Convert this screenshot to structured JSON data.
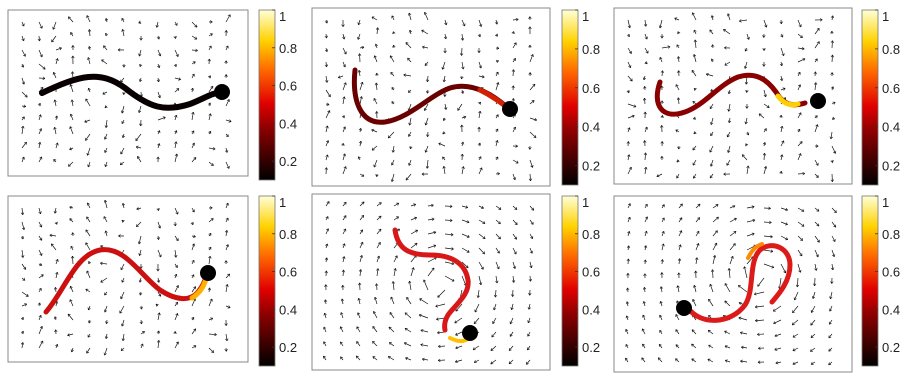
{
  "colorbar": {
    "colormap": "hot",
    "ticks": [
      "1",
      "0.8",
      "0.6",
      "0.4",
      "0.2"
    ],
    "tick_values": [
      1,
      0.8,
      0.6,
      0.4,
      0.2
    ],
    "range": [
      0.1,
      1
    ]
  },
  "panels": [
    {
      "row": 1,
      "col": 1,
      "curve_color": "black"
    },
    {
      "row": 1,
      "col": 2,
      "curve_color": "dark-red"
    },
    {
      "row": 1,
      "col": 3,
      "curve_color": "dark-red"
    },
    {
      "row": 2,
      "col": 1,
      "curve_color": "red"
    },
    {
      "row": 2,
      "col": 2,
      "curve_color": "red"
    },
    {
      "row": 2,
      "col": 3,
      "curve_color": "red"
    }
  ],
  "colors": {
    "frame": "#8a8a8a",
    "arrow": "#111111",
    "marker": "#000000"
  }
}
